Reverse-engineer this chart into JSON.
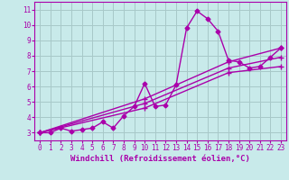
{
  "bg_color": "#c8eaea",
  "grid_color": "#a8c8c8",
  "line_color": "#aa00aa",
  "marker_color": "#aa00aa",
  "xlabel": "Windchill (Refroidissement éolien,°C)",
  "xlim": [
    -0.5,
    23.5
  ],
  "ylim": [
    2.5,
    11.5
  ],
  "xticks": [
    0,
    1,
    2,
    3,
    4,
    5,
    6,
    7,
    8,
    9,
    10,
    11,
    12,
    13,
    14,
    15,
    16,
    17,
    18,
    19,
    20,
    21,
    22,
    23
  ],
  "yticks": [
    3,
    4,
    5,
    6,
    7,
    8,
    9,
    10,
    11
  ],
  "series": [
    {
      "x": [
        0,
        1,
        2,
        3,
        4,
        5,
        6,
        7,
        8,
        9,
        10,
        11,
        12,
        13,
        14,
        15,
        16,
        17,
        18,
        19,
        20,
        21,
        22,
        23
      ],
      "y": [
        3.0,
        3.0,
        3.3,
        3.1,
        3.2,
        3.3,
        3.7,
        3.3,
        4.1,
        4.7,
        6.2,
        4.7,
        4.8,
        6.1,
        9.8,
        10.9,
        10.4,
        9.6,
        7.7,
        7.6,
        7.2,
        7.3,
        7.9,
        8.5
      ],
      "marker": "D",
      "markersize": 2.5,
      "linewidth": 1.0,
      "linestyle": "-"
    },
    {
      "x": [
        0,
        10,
        18,
        23
      ],
      "y": [
        3.0,
        5.2,
        7.6,
        8.5
      ],
      "marker": "+",
      "markersize": 4,
      "linewidth": 1.0,
      "linestyle": "-"
    },
    {
      "x": [
        0,
        10,
        18,
        23
      ],
      "y": [
        3.0,
        4.9,
        7.2,
        7.9
      ],
      "marker": "+",
      "markersize": 4,
      "linewidth": 1.0,
      "linestyle": "-"
    },
    {
      "x": [
        0,
        10,
        18,
        23
      ],
      "y": [
        3.0,
        4.6,
        6.9,
        7.3
      ],
      "marker": "+",
      "markersize": 4,
      "linewidth": 1.0,
      "linestyle": "-"
    }
  ],
  "font_family": "monospace",
  "tick_fontsize": 5.5,
  "label_fontsize": 6.5
}
